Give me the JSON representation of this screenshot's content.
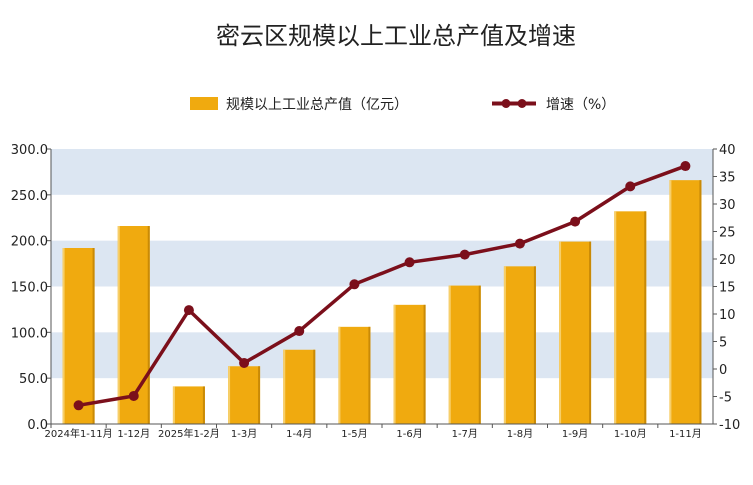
{
  "chart_data": {
    "type": "bar",
    "title": "密云区规模以上工业总产值及增速",
    "categories": [
      "2024年1-11月",
      "1-12月",
      "2025年1-2月",
      "1-3月",
      "1-4月",
      "1-5月",
      "1-6月",
      "1-7月",
      "1-8月",
      "1-9月",
      "1-10月",
      "1-11月"
    ],
    "series": [
      {
        "name": "规模以上工业总产值（亿元）",
        "type": "bar",
        "axis": "left",
        "color": "#f0aa0f",
        "values": [
          192,
          216,
          41,
          63,
          81,
          106,
          130,
          151,
          172,
          199,
          232,
          266
        ]
      },
      {
        "name": "增速（%）",
        "type": "line",
        "axis": "right",
        "color": "#7b0f1b",
        "values": [
          -6.6,
          -4.9,
          10.7,
          1.1,
          6.9,
          15.4,
          19.4,
          20.8,
          22.8,
          26.8,
          33.2,
          36.9
        ]
      }
    ],
    "y_left": {
      "min": 0,
      "max": 300,
      "ticks": [
        0,
        50,
        100,
        150,
        200,
        250,
        300
      ],
      "tick_labels": [
        "0.0",
        "50.0",
        "100.0",
        "150.0",
        "200.0",
        "250.0",
        "300.0"
      ]
    },
    "y_right": {
      "min": -10,
      "max": 40,
      "ticks": [
        -10,
        -5,
        0,
        5,
        10,
        15,
        20,
        25,
        30,
        35,
        40
      ],
      "tick_labels": [
        "-10",
        "-5",
        "0",
        "5",
        "10",
        "15",
        "20",
        "25",
        "30",
        "35",
        "40"
      ]
    },
    "band_color": "#dce6f2",
    "legend_position": "top-center"
  }
}
